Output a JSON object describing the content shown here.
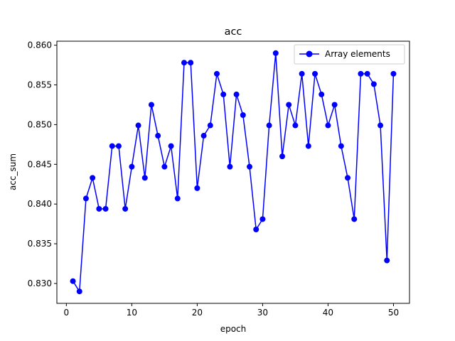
{
  "chart_data": {
    "type": "line",
    "title": "acc",
    "xlabel": "epoch",
    "ylabel": "acc_sum",
    "xlim": [
      -1.45,
      52.45
    ],
    "ylim": [
      0.8275,
      0.8605
    ],
    "x_ticks": [
      0,
      10,
      20,
      30,
      40,
      50
    ],
    "x_tick_labels": [
      "0",
      "10",
      "20",
      "30",
      "40",
      "50"
    ],
    "y_ticks": [
      0.83,
      0.835,
      0.84,
      0.845,
      0.85,
      0.855,
      0.86
    ],
    "y_tick_labels": [
      "0.830",
      "0.835",
      "0.840",
      "0.845",
      "0.850",
      "0.855",
      "0.860"
    ],
    "grid": false,
    "legend_position": "top-right",
    "series_color": "#0000ff",
    "series": [
      {
        "name": "Array elements",
        "marker": "circle",
        "x": [
          1,
          2,
          3,
          4,
          5,
          6,
          7,
          8,
          9,
          10,
          11,
          12,
          13,
          14,
          15,
          16,
          17,
          18,
          19,
          20,
          21,
          22,
          23,
          24,
          25,
          26,
          27,
          28,
          29,
          30,
          31,
          32,
          33,
          34,
          35,
          36,
          37,
          38,
          39,
          40,
          41,
          42,
          43,
          44,
          45,
          46,
          47,
          48,
          49,
          50
        ],
        "values": [
          0.8303,
          0.829,
          0.8407,
          0.8433,
          0.8394,
          0.8394,
          0.8473,
          0.8473,
          0.8394,
          0.8447,
          0.8499,
          0.8433,
          0.8525,
          0.8486,
          0.8447,
          0.8473,
          0.8407,
          0.8578,
          0.8578,
          0.842,
          0.8486,
          0.8499,
          0.8564,
          0.8538,
          0.8447,
          0.8538,
          0.8512,
          0.8447,
          0.8368,
          0.8381,
          0.8499,
          0.859,
          0.846,
          0.8525,
          0.8499,
          0.8564,
          0.8473,
          0.8564,
          0.8538,
          0.8499,
          0.8525,
          0.8473,
          0.8433,
          0.8381,
          0.8564,
          0.8564,
          0.8551,
          0.8499,
          0.8329,
          0.8564
        ]
      }
    ]
  }
}
